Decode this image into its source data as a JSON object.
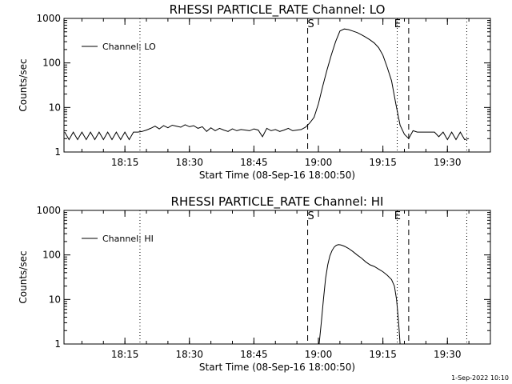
{
  "footer": {
    "timestamp": "1-Sep-2022 10:10"
  },
  "chart_data": [
    {
      "type": "line",
      "title": "RHESSI PARTICLE_RATE Channel: LO",
      "xlabel": "Start Time (08-Sep-16 18:00:50)",
      "ylabel": "Counts/sec",
      "yscale": "log",
      "xlim": [
        "18:00:50",
        "19:40:00"
      ],
      "ylim": [
        1,
        1000
      ],
      "xticks": [
        "18:15",
        "18:30",
        "18:45",
        "19:00",
        "19:15",
        "19:30"
      ],
      "yticks": [
        "1",
        "10",
        "100",
        "1000"
      ],
      "legend": "top-left",
      "series": [
        {
          "name": "Channel: LO",
          "x": [
            "18:01",
            "18:02",
            "18:03",
            "18:04",
            "18:05",
            "18:06",
            "18:07",
            "18:08",
            "18:09",
            "18:10",
            "18:11",
            "18:12",
            "18:13",
            "18:14",
            "18:15",
            "18:16",
            "18:17",
            "18:18",
            "18:19",
            "18:20",
            "18:21",
            "18:22",
            "18:23",
            "18:24",
            "18:25",
            "18:26",
            "18:27",
            "18:28",
            "18:29",
            "18:30",
            "18:31",
            "18:32",
            "18:33",
            "18:34",
            "18:35",
            "18:36",
            "18:37",
            "18:38",
            "18:39",
            "18:40",
            "18:41",
            "18:42",
            "18:43",
            "18:44",
            "18:45",
            "18:46",
            "18:47",
            "18:48",
            "18:49",
            "18:50",
            "18:51",
            "18:52",
            "18:53",
            "18:54",
            "18:55",
            "18:56",
            "18:57",
            "18:58",
            "18:59",
            "19:00",
            "19:01",
            "19:02",
            "19:03",
            "19:04",
            "19:05",
            "19:06",
            "19:07",
            "19:08",
            "19:09",
            "19:10",
            "19:11",
            "19:12",
            "19:13",
            "19:14",
            "19:15",
            "19:16",
            "19:17",
            "19:18",
            "19:19",
            "19:20",
            "19:21",
            "19:22",
            "19:23",
            "19:24",
            "19:25",
            "19:26",
            "19:27",
            "19:28",
            "19:29",
            "19:30",
            "19:31",
            "19:32",
            "19:33",
            "19:34",
            "19:35"
          ],
          "y": [
            2.8,
            1.9,
            2.8,
            1.9,
            2.8,
            1.9,
            2.8,
            1.9,
            2.8,
            1.9,
            2.8,
            1.9,
            2.8,
            1.9,
            2.8,
            1.9,
            2.8,
            2.8,
            2.9,
            3.1,
            3.4,
            3.8,
            3.3,
            3.9,
            3.5,
            4.0,
            3.8,
            3.6,
            4.1,
            3.7,
            3.9,
            3.4,
            3.7,
            2.9,
            3.5,
            3.0,
            3.4,
            3.1,
            2.9,
            3.3,
            3.0,
            3.2,
            3.1,
            3.0,
            3.3,
            3.1,
            2.2,
            3.4,
            3.0,
            3.2,
            2.9,
            3.1,
            3.4,
            3.0,
            3.1,
            3.2,
            3.6,
            4.5,
            6.0,
            12,
            30,
            70,
            150,
            300,
            520,
            580,
            560,
            520,
            480,
            430,
            380,
            330,
            280,
            220,
            150,
            80,
            40,
            12,
            4,
            2.5,
            2.0,
            3.0,
            2.8,
            2.8,
            2.8,
            2.8,
            2.8,
            2.2,
            2.8,
            1.9,
            2.8,
            1.9,
            2.8,
            1.9,
            2.0
          ]
        }
      ],
      "annotations": [
        {
          "text": "S",
          "x": "18:57:30"
        },
        {
          "text": "E",
          "x": "19:21:00"
        }
      ],
      "dotted_lines": [
        "18:18:30",
        "19:18:20",
        "19:34:30"
      ]
    },
    {
      "type": "line",
      "title": "RHESSI PARTICLE_RATE Channel: HI",
      "xlabel": "Start Time (08-Sep-16 18:00:50)",
      "ylabel": "Counts/sec",
      "yscale": "log",
      "xlim": [
        "18:00:50",
        "19:40:00"
      ],
      "ylim": [
        1,
        1000
      ],
      "xticks": [
        "18:15",
        "18:30",
        "18:45",
        "19:00",
        "19:15",
        "19:30"
      ],
      "yticks": [
        "1",
        "10",
        "100",
        "1000"
      ],
      "legend": "top-left",
      "series": [
        {
          "name": "Channel: HI",
          "x": [
            "19:00:10",
            "19:00:40",
            "19:01:10",
            "19:01:40",
            "19:02:10",
            "19:02:40",
            "19:03:10",
            "19:03:40",
            "19:04:10",
            "19:04:40",
            "19:05:10",
            "19:05:40",
            "19:06:10",
            "19:07",
            "19:08",
            "19:09",
            "19:10",
            "19:11",
            "19:12",
            "19:13",
            "19:14",
            "19:15",
            "19:16",
            "19:17",
            "19:17:40",
            "19:18:10",
            "19:18:40",
            "19:19:00"
          ],
          "y": [
            1,
            3,
            10,
            30,
            60,
            95,
            125,
            150,
            165,
            170,
            168,
            162,
            155,
            140,
            120,
            100,
            85,
            70,
            60,
            55,
            48,
            42,
            35,
            28,
            20,
            10,
            3,
            1
          ]
        }
      ],
      "annotations": [
        {
          "text": "S",
          "x": "18:57:30"
        },
        {
          "text": "E",
          "x": "19:21:00"
        }
      ],
      "dotted_lines": [
        "18:18:30",
        "19:18:20",
        "19:34:30"
      ]
    }
  ]
}
